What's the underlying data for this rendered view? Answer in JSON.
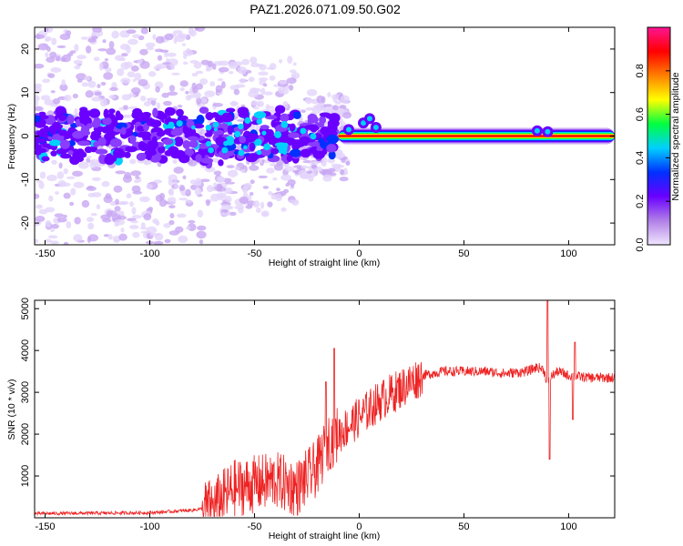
{
  "title": "PAZ1.2026.071.09.50.G02",
  "chart_data": [
    {
      "type": "heatmap",
      "name": "spectrogram",
      "xlabel": "Height of straight line (km)",
      "ylabel": "Frequency (Hz)",
      "xlim": [
        -155,
        122
      ],
      "ylim": [
        -25,
        25
      ],
      "xticks": [
        -150,
        -100,
        -50,
        0,
        50,
        100
      ],
      "yticks": [
        -20,
        -10,
        0,
        10,
        20
      ],
      "colorbar": {
        "label": "Normalized spectral amplitude",
        "range": [
          0,
          1
        ],
        "ticks": [
          0.0,
          0.2,
          0.4,
          0.6,
          0.8
        ],
        "tick_labels": [
          "0.0",
          "0.2",
          "0.4",
          "0.6",
          "0.8"
        ],
        "colormap": [
          "#f0e6ff",
          "#b07fe6",
          "#6a00ff",
          "#0030ff",
          "#00d0ff",
          "#00ff40",
          "#ffff00",
          "#ff8000",
          "#ff0000",
          "#ff1493"
        ]
      },
      "description_of_features": {
        "noisy_region_x": [
          -155,
          -10
        ],
        "tone_start_x": -10,
        "tone_frequency_hz": 0
      }
    },
    {
      "type": "line",
      "name": "snr",
      "xlabel": "Height of straight line (km)",
      "ylabel": "SNR (10 * v/v)",
      "xlim": [
        -155,
        122
      ],
      "ylim": [
        0,
        5200
      ],
      "xticks": [
        -150,
        -100,
        -50,
        0,
        50,
        100
      ],
      "yticks": [
        1000,
        2000,
        3000,
        4000,
        5000
      ],
      "color": "#ee2222",
      "profile_x": [
        -155,
        -100,
        -80,
        -70,
        -60,
        -50,
        -40,
        -30,
        -20,
        -15,
        -10,
        -5,
        0,
        10,
        20,
        30,
        40,
        50,
        60,
        70,
        80,
        85,
        88,
        90,
        92,
        95,
        100,
        110,
        122
      ],
      "profile_y": [
        100,
        120,
        180,
        250,
        700,
        800,
        900,
        700,
        1200,
        1800,
        2000,
        2200,
        2400,
        2800,
        3100,
        3400,
        3500,
        3500,
        3500,
        3450,
        3500,
        3600,
        3550,
        3200,
        3400,
        3500,
        3400,
        3350,
        3350
      ],
      "spikes": [
        {
          "x": -12,
          "y": 4050
        },
        {
          "x": -16,
          "y": 3250
        },
        {
          "x": 90,
          "y": 5200
        },
        {
          "x": 91,
          "y": 1400
        },
        {
          "x": 103,
          "y": 4200
        },
        {
          "x": 102,
          "y": 2350
        }
      ]
    }
  ]
}
